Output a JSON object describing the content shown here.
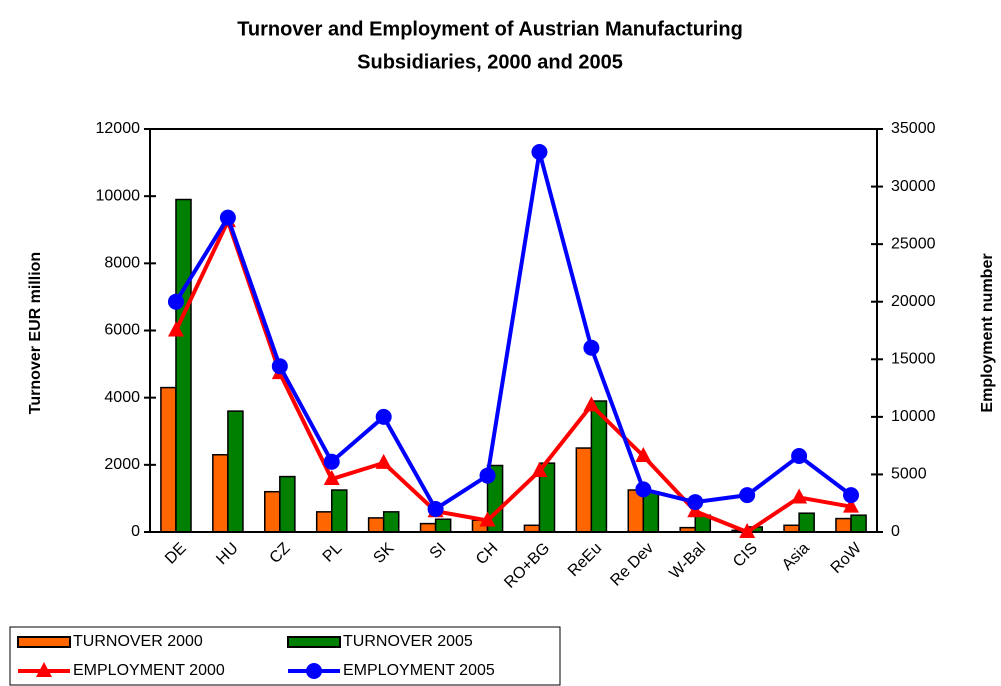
{
  "chart_data": {
    "type": "bar_line",
    "title": [
      "Turnover and Employment of Austrian Manufacturing",
      "Subsidiaries, 2000 and 2005"
    ],
    "y_label": "Turnover EUR million",
    "y2_label": "Employment number",
    "categories": [
      "DE",
      "HU",
      "CZ",
      "PL",
      "SK",
      "SI",
      "CH",
      "RO+BG",
      "ReEu",
      "Re Dev",
      "W-Bal",
      "CIS",
      "Asia",
      "RoW"
    ],
    "series": [
      {
        "name": "TURNOVER 2000",
        "kind": "bar",
        "color": "#ff6600",
        "values": [
          4300,
          2300,
          1200,
          600,
          420,
          250,
          350,
          200,
          2500,
          1250,
          130,
          50,
          200,
          400
        ]
      },
      {
        "name": "TURNOVER 2005",
        "kind": "bar",
        "color": "#008000",
        "values": [
          9900,
          3600,
          1650,
          1250,
          600,
          380,
          1980,
          2050,
          3900,
          1200,
          500,
          150,
          560,
          500
        ]
      },
      {
        "name": "EMPLOYMENT 2000",
        "kind": "line",
        "marker": "triangle",
        "axis": "y2",
        "color": "#ff0000",
        "values": [
          17500,
          27000,
          13800,
          4600,
          6000,
          1800,
          1000,
          5300,
          11000,
          6600,
          1800,
          0,
          3000,
          2200
        ]
      },
      {
        "name": "EMPLOYMENT 2005",
        "kind": "line",
        "marker": "circle",
        "axis": "y2",
        "color": "#0000ff",
        "values": [
          20000,
          27300,
          14400,
          6100,
          10000,
          2000,
          4900,
          33000,
          16000,
          3700,
          2600,
          3200,
          6600,
          3200
        ]
      }
    ],
    "ylim": [
      0,
      12000
    ],
    "yticks": [
      0,
      2000,
      4000,
      6000,
      8000,
      10000,
      12000
    ],
    "y2lim": [
      0,
      35000
    ],
    "y2ticks": [
      0,
      5000,
      10000,
      15000,
      20000,
      25000,
      30000,
      35000
    ],
    "legend": "bottom-left"
  }
}
